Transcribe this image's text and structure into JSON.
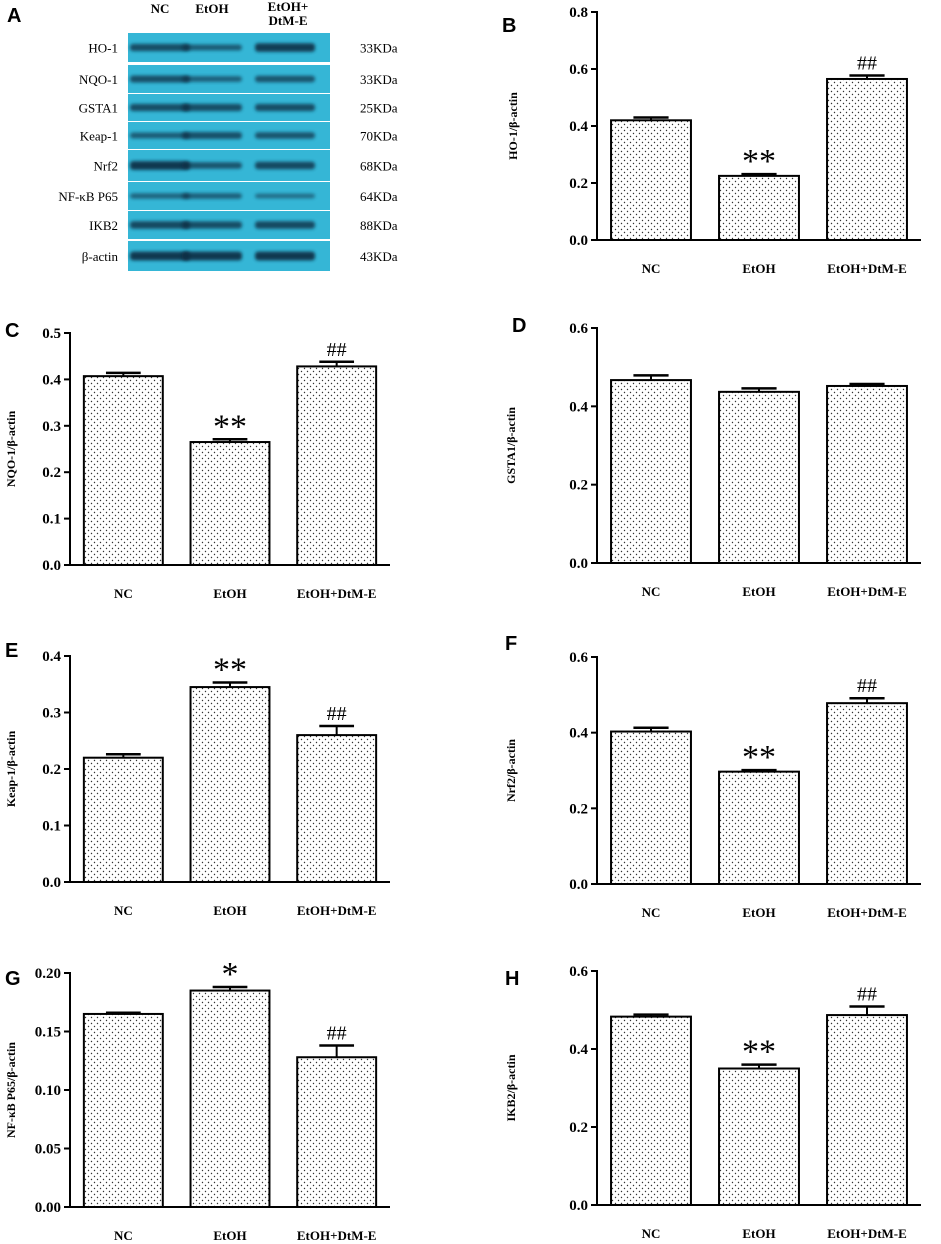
{
  "panels": {
    "a": "A",
    "b": "B",
    "c": "C",
    "d": "D",
    "e": "E",
    "f": "F",
    "g": "G",
    "h": "H"
  },
  "blot": {
    "lanes": [
      "NC",
      "EtOH",
      "EtOH+",
      "DtM-E"
    ],
    "proteins": [
      "HO-1",
      "NQO-1",
      "GSTA1",
      "Keap-1",
      "Nrf2",
      "NF-κB P65",
      "IKB2",
      "β-actin"
    ],
    "sizes": [
      "33KDa",
      "33KDa",
      "25KDa",
      "70KDa",
      "68KDa",
      "64KDa",
      "88KDa",
      "43KDa"
    ],
    "colors": {
      "membrane": "#35b6d6",
      "band": "#0f2f44"
    },
    "intensities": [
      [
        0.7,
        0.5,
        0.9
      ],
      [
        0.65,
        0.45,
        0.6
      ],
      [
        0.7,
        0.7,
        0.7
      ],
      [
        0.5,
        0.65,
        0.6
      ],
      [
        0.95,
        0.6,
        0.75
      ],
      [
        0.4,
        0.45,
        0.3
      ],
      [
        0.75,
        0.7,
        0.75
      ],
      [
        0.95,
        0.95,
        0.95
      ]
    ]
  },
  "chart_data": [
    {
      "id": "B",
      "type": "bar",
      "categories": [
        "NC",
        "EtOH",
        "EtOH+DtM-E"
      ],
      "values": [
        0.42,
        0.225,
        0.565
      ],
      "errors": [
        0.01,
        0.006,
        0.012
      ],
      "annotations": [
        "",
        "**",
        "##"
      ],
      "ylabel": "HO-1/β-actin",
      "ylim": [
        0,
        0.8
      ],
      "yticks": [
        "0.0",
        "0.2",
        "0.4",
        "0.6",
        "0.8"
      ]
    },
    {
      "id": "C",
      "type": "bar",
      "categories": [
        "NC",
        "EtOH",
        "EtOH+DtM-E"
      ],
      "values": [
        0.407,
        0.265,
        0.428
      ],
      "errors": [
        0.007,
        0.006,
        0.01
      ],
      "annotations": [
        "",
        "**",
        "##"
      ],
      "ylabel": "NQO-1/β-actin",
      "ylim": [
        0,
        0.5
      ],
      "yticks": [
        "0.0",
        "0.1",
        "0.2",
        "0.3",
        "0.4",
        "0.5"
      ]
    },
    {
      "id": "D",
      "type": "bar",
      "categories": [
        "NC",
        "EtOH",
        "EtOH+DtM-E"
      ],
      "values": [
        0.467,
        0.437,
        0.452
      ],
      "errors": [
        0.012,
        0.009,
        0.005
      ],
      "annotations": [
        "",
        "",
        ""
      ],
      "ylabel": "GSTA1/β-actin",
      "ylim": [
        0,
        0.6
      ],
      "yticks": [
        "0.0",
        "0.2",
        "0.4",
        "0.6"
      ]
    },
    {
      "id": "E",
      "type": "bar",
      "categories": [
        "NC",
        "EtOH",
        "EtOH+DtM-E"
      ],
      "values": [
        0.22,
        0.345,
        0.26
      ],
      "errors": [
        0.006,
        0.008,
        0.016
      ],
      "annotations": [
        "",
        "**",
        "##"
      ],
      "ylabel": "Keap-1/β-actin",
      "ylim": [
        0,
        0.4
      ],
      "yticks": [
        "0.0",
        "0.1",
        "0.2",
        "0.3",
        "0.4"
      ]
    },
    {
      "id": "F",
      "type": "bar",
      "categories": [
        "NC",
        "EtOH",
        "EtOH+DtM-E"
      ],
      "values": [
        0.403,
        0.297,
        0.478
      ],
      "errors": [
        0.01,
        0.004,
        0.013
      ],
      "annotations": [
        "",
        "**",
        "##"
      ],
      "ylabel": "Nrf2/β-actin",
      "ylim": [
        0,
        0.6
      ],
      "yticks": [
        "0.0",
        "0.2",
        "0.4",
        "0.6"
      ]
    },
    {
      "id": "G",
      "type": "bar",
      "categories": [
        "NC",
        "EtOH",
        "EtOH+DtM-E"
      ],
      "values": [
        0.165,
        0.185,
        0.128
      ],
      "errors": [
        0.001,
        0.003,
        0.01
      ],
      "annotations": [
        "",
        "*",
        "##"
      ],
      "ylabel": "NF-κB P65/β-actin",
      "ylim": [
        0,
        0.2
      ],
      "yticks": [
        "0.00",
        "0.05",
        "0.10",
        "0.15",
        "0.20"
      ]
    },
    {
      "id": "H",
      "type": "bar",
      "categories": [
        "NC",
        "EtOH",
        "EtOH+DtM-E"
      ],
      "values": [
        0.483,
        0.35,
        0.487
      ],
      "errors": [
        0.005,
        0.01,
        0.022
      ],
      "annotations": [
        "",
        "**",
        "##"
      ],
      "ylabel": "IKB2/β-actin",
      "ylim": [
        0,
        0.6
      ],
      "yticks": [
        "0.0",
        "0.2",
        "0.4",
        "0.6"
      ]
    }
  ]
}
